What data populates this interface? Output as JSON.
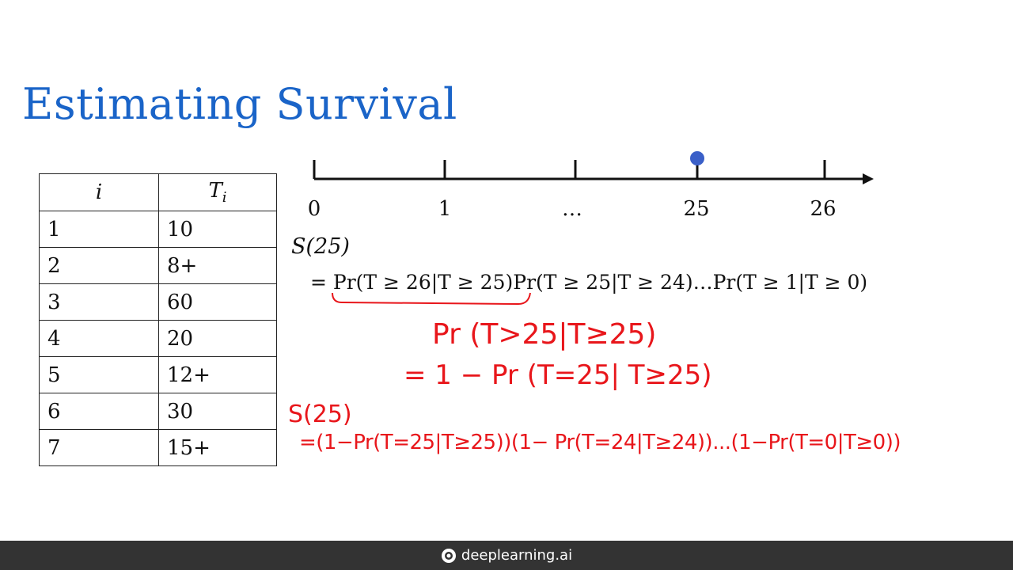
{
  "slide": {
    "title": "Estimating Survival"
  },
  "table": {
    "headers": [
      "i",
      "T",
      "i"
    ],
    "rows": [
      [
        "1",
        "10"
      ],
      [
        "2",
        "8+"
      ],
      [
        "3",
        "60"
      ],
      [
        "4",
        "20"
      ],
      [
        "5",
        "12+"
      ],
      [
        "6",
        "30"
      ],
      [
        "7",
        "15+"
      ]
    ]
  },
  "timeline": {
    "labels": [
      "0",
      "1",
      "…",
      "25",
      "26"
    ],
    "marker_color": "#3a5fc8"
  },
  "equation": {
    "line1": "S(25)",
    "line2": "= Pr(T ≥ 26|T ≥ 25)Pr(T ≥ 25|T ≥ 24)…Pr(T ≥ 1|T ≥ 0)"
  },
  "handwriting": {
    "color": "#e8161b",
    "line1": "Pr (T>25|T≥25)",
    "line2": "= 1 − Pr (T=25| T≥25)",
    "line3": "S(25)",
    "line4": "=(1−Pr(T=25|T≥25))(1− Pr(T=24|T≥24))...(1−Pr(T=0|T≥0))"
  },
  "footer": {
    "brand": "deeplearning.ai"
  }
}
